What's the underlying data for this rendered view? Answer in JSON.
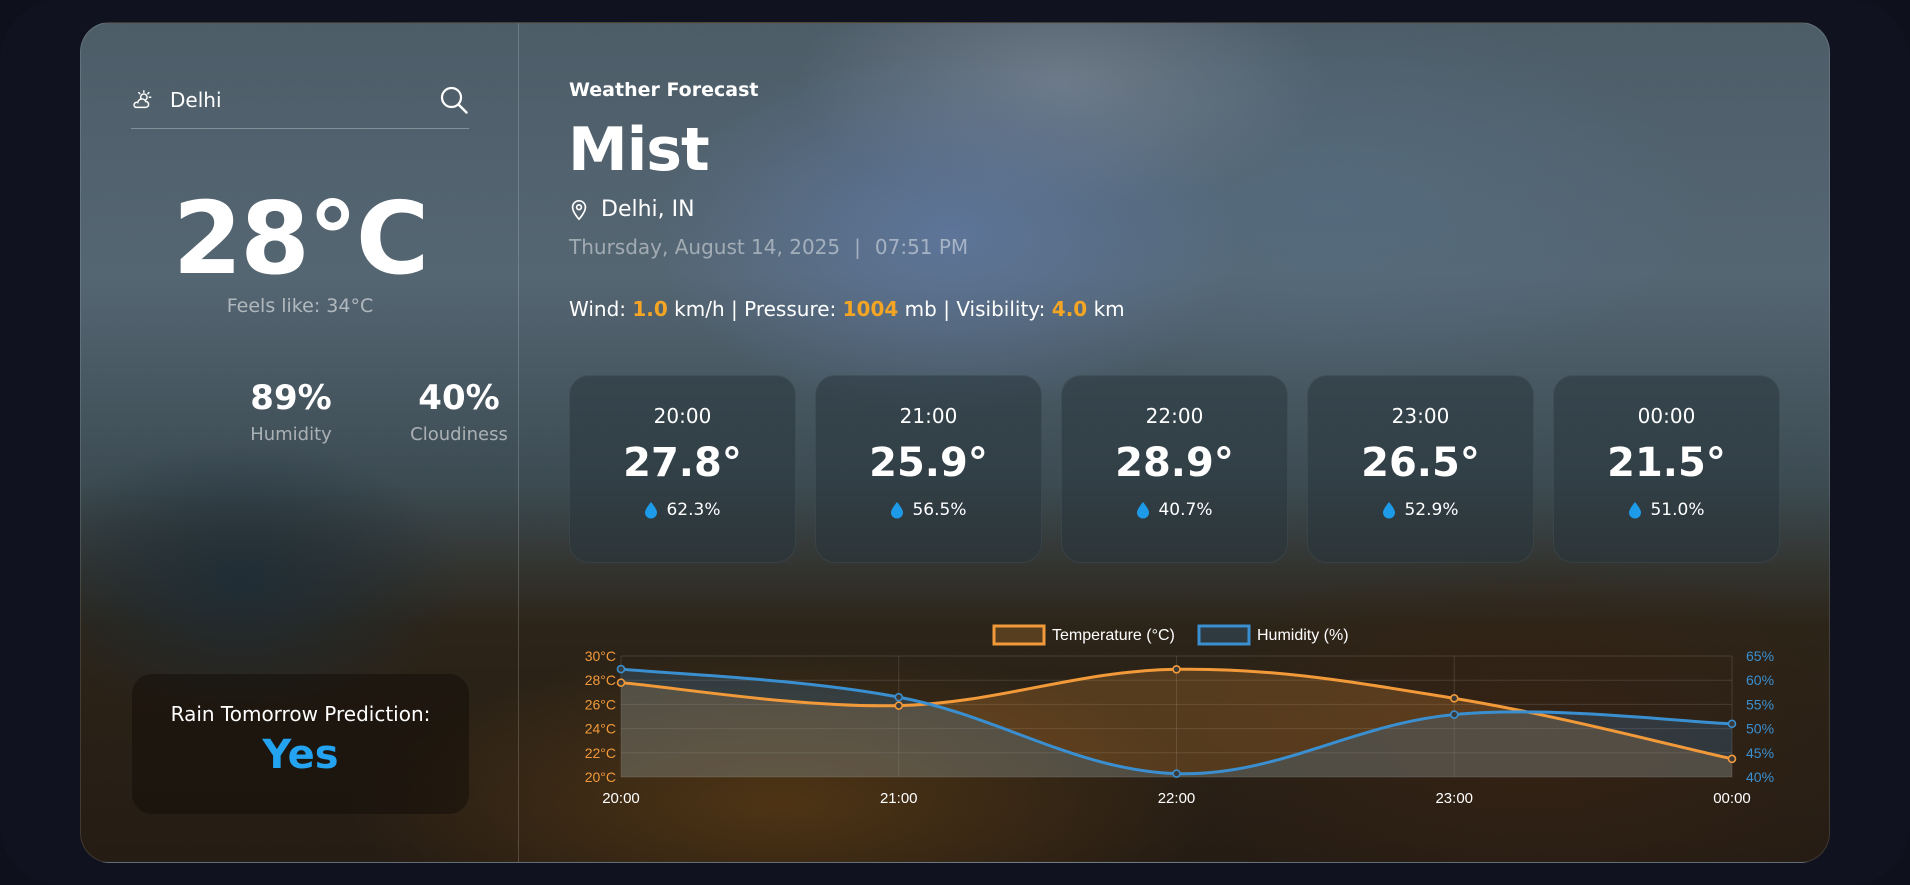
{
  "colors": {
    "accent_orange": "#f5a524",
    "accent_blue": "#23a3f0",
    "temp_line": "#f29a3a",
    "humidity_line": "#3a8fd0"
  },
  "sidebar": {
    "city": "Delhi",
    "city_icon": "partly-cloudy-icon",
    "search_icon": "search-icon",
    "temperature": "28°C",
    "feels_like": "Feels like: 34°C",
    "humidity_value": "89%",
    "humidity_label": "Humidity",
    "cloudiness_value": "40%",
    "cloudiness_label": "Cloudiness",
    "rain_title": "Rain Tomorrow Prediction:",
    "rain_answer": "Yes"
  },
  "main": {
    "subtitle": "Weather Forecast",
    "condition": "Mist",
    "location": "Delhi, IN",
    "date": "Thursday, August 14, 2025",
    "separator": "|",
    "time": "07:51 PM",
    "metrics": {
      "wind_label": "Wind:",
      "wind_value": "1.0",
      "wind_unit": "km/h",
      "divider1": "|",
      "pressure_label": "Pressure:",
      "pressure_value": "1004",
      "pressure_unit": "mb",
      "divider2": "|",
      "visibility_label": "Visibility:",
      "visibility_value": "4.0",
      "visibility_unit": "km"
    },
    "hourly": [
      {
        "time": "20:00",
        "temp": "27.8°",
        "humidity": "62.3%"
      },
      {
        "time": "21:00",
        "temp": "25.9°",
        "humidity": "56.5%"
      },
      {
        "time": "22:00",
        "temp": "28.9°",
        "humidity": "40.7%"
      },
      {
        "time": "23:00",
        "temp": "26.5°",
        "humidity": "52.9%"
      },
      {
        "time": "00:00",
        "temp": "21.5°",
        "humidity": "51.0%"
      }
    ]
  },
  "chart_data": {
    "type": "line",
    "title": "",
    "categories": [
      "20:00",
      "21:00",
      "22:00",
      "23:00",
      "00:00"
    ],
    "series": [
      {
        "name": "Temperature (°C)",
        "axis": "left",
        "values": [
          27.8,
          25.9,
          28.9,
          26.5,
          21.5
        ]
      },
      {
        "name": "Humidity (%)",
        "axis": "right",
        "values": [
          62.3,
          56.5,
          40.7,
          52.9,
          51.0
        ]
      }
    ],
    "y_left": {
      "range": [
        20,
        30
      ],
      "ticks": [
        "20°C",
        "22°C",
        "24°C",
        "26°C",
        "28°C",
        "30°C"
      ]
    },
    "y_right": {
      "range": [
        40,
        65
      ],
      "ticks": [
        "40%",
        "45%",
        "50%",
        "55%",
        "60%",
        "65%"
      ]
    },
    "legend_position": "top-center",
    "grid": true
  }
}
